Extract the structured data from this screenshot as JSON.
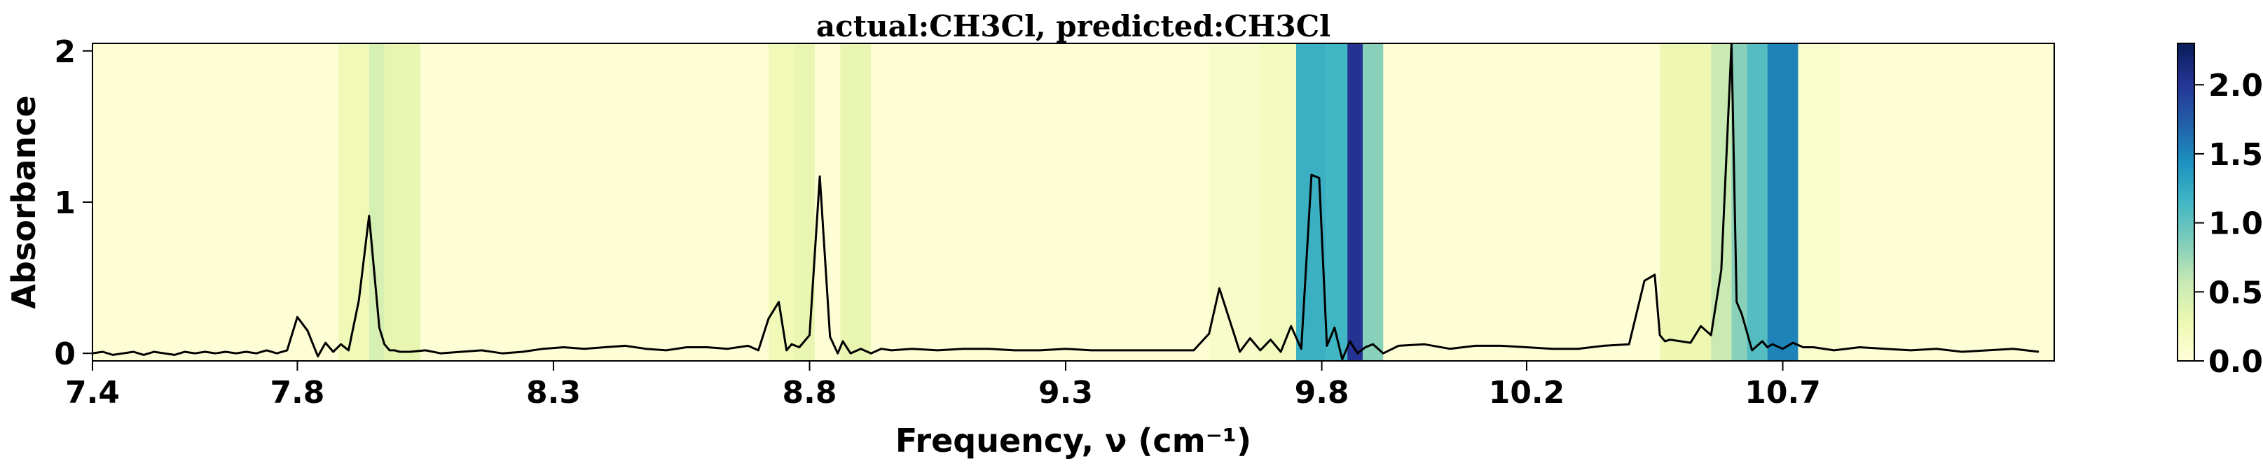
{
  "chart_data": {
    "type": "line",
    "title": "actual:CH3Cl, predicted:CH3Cl",
    "xlabel": "Frequency, ν (cm⁻¹)",
    "ylabel": "Absorbance",
    "xlim": [
      7.4,
      11.23
    ],
    "ylim": [
      -0.05,
      2.05
    ],
    "xticks": [
      "7.4",
      "7.8",
      "8.3",
      "8.8",
      "9.3",
      "9.8",
      "10.2",
      "10.7"
    ],
    "yticks": [
      "0",
      "1",
      "2"
    ],
    "colorbar": {
      "ticks": [
        "0.0",
        "0.5",
        "1.0",
        "1.5",
        "2.0"
      ],
      "range": [
        0,
        2.3
      ],
      "colormap": "YlGnBu"
    },
    "grid": false,
    "line_color": "#000000",
    "heatmap_bands": [
      {
        "x0": 7.88,
        "x1": 7.94,
        "value": 0.25
      },
      {
        "x0": 7.94,
        "x1": 7.97,
        "value": 0.5
      },
      {
        "x0": 7.97,
        "x1": 8.04,
        "value": 0.35
      },
      {
        "x0": 8.72,
        "x1": 8.77,
        "value": 0.25
      },
      {
        "x0": 8.77,
        "x1": 8.81,
        "value": 0.35
      },
      {
        "x0": 8.86,
        "x1": 8.92,
        "value": 0.35
      },
      {
        "x0": 9.58,
        "x1": 9.68,
        "value": 0.12
      },
      {
        "x0": 9.68,
        "x1": 9.75,
        "value": 0.22
      },
      {
        "x0": 9.75,
        "x1": 9.81,
        "value": 1.3
      },
      {
        "x0": 9.81,
        "x1": 9.85,
        "value": 1.25
      },
      {
        "x0": 9.85,
        "x1": 9.88,
        "value": 2.2
      },
      {
        "x0": 9.88,
        "x1": 9.92,
        "value": 0.9
      },
      {
        "x0": 10.46,
        "x1": 10.56,
        "value": 0.3
      },
      {
        "x0": 10.56,
        "x1": 10.6,
        "value": 0.6
      },
      {
        "x0": 10.6,
        "x1": 10.63,
        "value": 0.9
      },
      {
        "x0": 10.63,
        "x1": 10.67,
        "value": 1.15
      },
      {
        "x0": 10.67,
        "x1": 10.73,
        "value": 1.65
      },
      {
        "x0": 10.73,
        "x1": 10.81,
        "value": 0.1
      }
    ],
    "series": [
      {
        "x": [
          7.4,
          7.42,
          7.44,
          7.46,
          7.48,
          7.5,
          7.52,
          7.54,
          7.56,
          7.58,
          7.6,
          7.62,
          7.64,
          7.66,
          7.68,
          7.7,
          7.72,
          7.74,
          7.76,
          7.78,
          7.8,
          7.82,
          7.84,
          7.855,
          7.87,
          7.885,
          7.9,
          7.92,
          7.94,
          7.96,
          7.97,
          7.98,
          7.99,
          8.0,
          8.02,
          8.05,
          8.08,
          8.12,
          8.16,
          8.2,
          8.24,
          8.28,
          8.32,
          8.36,
          8.4,
          8.44,
          8.48,
          8.52,
          8.56,
          8.6,
          8.64,
          8.68,
          8.7,
          8.72,
          8.74,
          8.755,
          8.765,
          8.78,
          8.8,
          8.82,
          8.84,
          8.855,
          8.865,
          8.88,
          8.9,
          8.92,
          8.94,
          8.96,
          9.0,
          9.05,
          9.1,
          9.15,
          9.2,
          9.25,
          9.3,
          9.35,
          9.4,
          9.45,
          9.5,
          9.55,
          9.58,
          9.6,
          9.62,
          9.64,
          9.66,
          9.68,
          9.7,
          9.72,
          9.74,
          9.76,
          9.78,
          9.795,
          9.81,
          9.825,
          9.84,
          9.855,
          9.87,
          9.885,
          9.9,
          9.92,
          9.95,
          10.0,
          10.05,
          10.1,
          10.15,
          10.2,
          10.25,
          10.3,
          10.35,
          10.4,
          10.43,
          10.45,
          10.46,
          10.47,
          10.48,
          10.5,
          10.52,
          10.54,
          10.56,
          10.58,
          10.6,
          10.61,
          10.62,
          10.63,
          10.64,
          10.66,
          10.67,
          10.68,
          10.7,
          10.72,
          10.74,
          10.76,
          10.8,
          10.85,
          10.9,
          10.95,
          11.0,
          11.05,
          11.1,
          11.15,
          11.2
        ],
        "y": [
          0.0,
          0.01,
          -0.01,
          0.0,
          0.01,
          -0.01,
          0.01,
          0.0,
          -0.01,
          0.01,
          0.0,
          0.01,
          0.0,
          0.01,
          0.0,
          0.01,
          0.0,
          0.02,
          0.0,
          0.02,
          0.24,
          0.15,
          -0.02,
          0.07,
          0.01,
          0.06,
          0.02,
          0.35,
          0.91,
          0.17,
          0.06,
          0.02,
          0.02,
          0.01,
          0.01,
          0.02,
          0.0,
          0.01,
          0.02,
          0.0,
          0.01,
          0.03,
          0.04,
          0.03,
          0.04,
          0.05,
          0.03,
          0.02,
          0.04,
          0.04,
          0.03,
          0.05,
          0.02,
          0.23,
          0.34,
          0.02,
          0.06,
          0.04,
          0.12,
          1.17,
          0.11,
          0.0,
          0.08,
          0.0,
          0.03,
          0.0,
          0.03,
          0.02,
          0.03,
          0.02,
          0.03,
          0.03,
          0.02,
          0.02,
          0.03,
          0.02,
          0.02,
          0.02,
          0.02,
          0.02,
          0.13,
          0.43,
          0.22,
          0.01,
          0.1,
          0.02,
          0.09,
          0.01,
          0.18,
          0.03,
          1.18,
          1.16,
          0.05,
          0.17,
          -0.04,
          0.08,
          0.0,
          0.04,
          0.06,
          0.0,
          0.05,
          0.06,
          0.03,
          0.05,
          0.05,
          0.04,
          0.03,
          0.03,
          0.05,
          0.06,
          0.48,
          0.52,
          0.12,
          0.08,
          0.09,
          0.08,
          0.07,
          0.18,
          0.12,
          0.55,
          2.05,
          0.34,
          0.26,
          0.14,
          0.02,
          0.08,
          0.04,
          0.06,
          0.03,
          0.07,
          0.04,
          0.04,
          0.02,
          0.04,
          0.03,
          0.02,
          0.03,
          0.01,
          0.02,
          0.03,
          0.01
        ]
      }
    ]
  }
}
